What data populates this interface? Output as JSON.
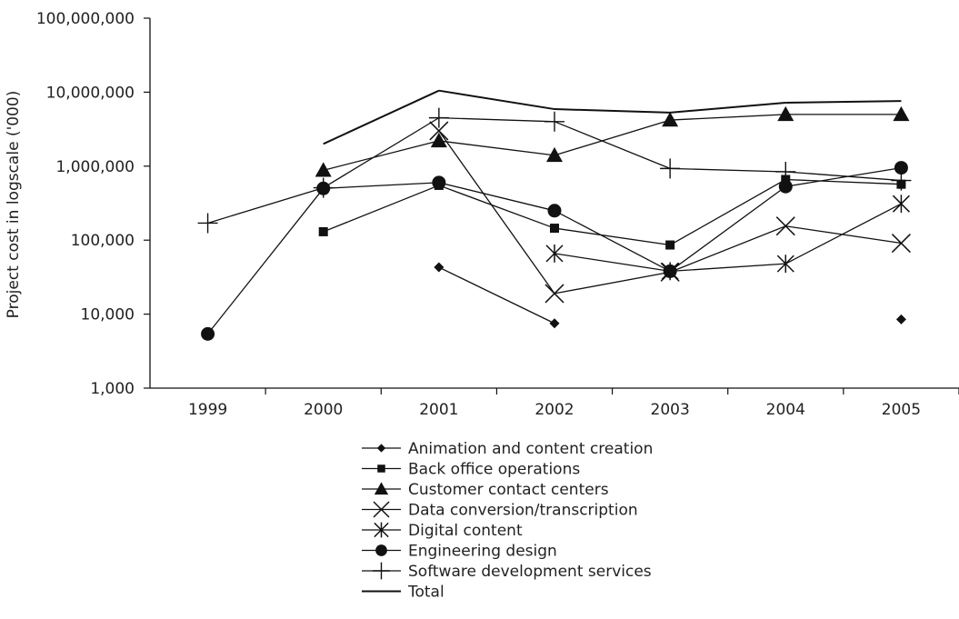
{
  "chart_data": {
    "type": "line",
    "title": "",
    "xlabel": "",
    "ylabel": "Project cost in logscale ('000)",
    "y_scale": "log",
    "ylim": [
      1000,
      100000000
    ],
    "y_ticks": [
      1000,
      10000,
      100000,
      1000000,
      10000000,
      100000000
    ],
    "y_tick_labels": [
      "1,000",
      "10,000",
      "100,000",
      "1,000,000",
      "10,000,000",
      "100,000,000"
    ],
    "categories": [
      "1999",
      "2000",
      "2001",
      "2002",
      "2003",
      "2004",
      "2005"
    ],
    "grid": false,
    "legend_position": "bottom",
    "series": [
      {
        "name": "Animation and content creation",
        "marker": "diamond",
        "values": [
          null,
          null,
          43000,
          7500,
          null,
          null,
          8500
        ]
      },
      {
        "name": "Back office operations",
        "marker": "square",
        "values": [
          null,
          130000,
          550000,
          145000,
          86000,
          660000,
          570000
        ]
      },
      {
        "name": "Customer contact centers",
        "marker": "triangle",
        "values": [
          null,
          880000,
          2200000,
          1400000,
          4200000,
          5000000,
          5000000
        ]
      },
      {
        "name": "Data conversion/transcription",
        "marker": "x",
        "values": [
          null,
          null,
          3000000,
          19000,
          37000,
          155000,
          91000
        ]
      },
      {
        "name": "Digital content",
        "marker": "asterisk",
        "values": [
          null,
          null,
          null,
          66000,
          38000,
          48000,
          310000
        ]
      },
      {
        "name": "Engineering design",
        "marker": "circle",
        "values": [
          5400,
          500000,
          600000,
          250000,
          38000,
          530000,
          950000
        ]
      },
      {
        "name": "Software development services",
        "marker": "plus",
        "values": [
          170000,
          510000,
          4500000,
          4000000,
          930000,
          840000,
          640000
        ]
      },
      {
        "name": "Total",
        "marker": "none",
        "values": [
          null,
          2000000,
          10500000,
          5900000,
          5300000,
          7200000,
          7600000
        ]
      }
    ]
  }
}
